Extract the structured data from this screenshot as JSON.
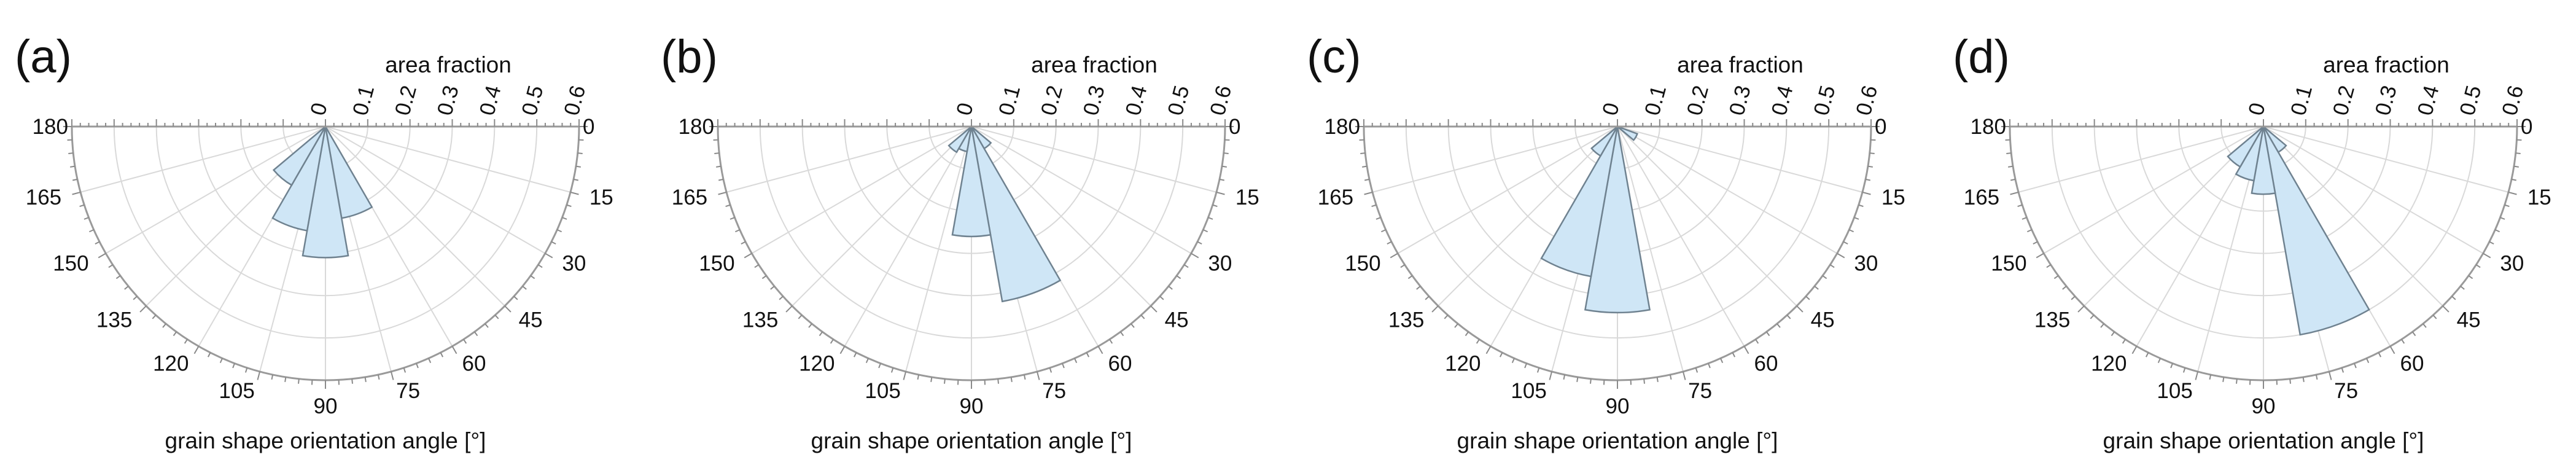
{
  "style": {
    "bar_fill": "#cfe6f6",
    "bar_edge": "#6f8290",
    "grid": "#d9d9d9",
    "frame": "#9a9a9a"
  },
  "chart_data": [
    {
      "type": "polar-histogram",
      "panel_label": "(a)",
      "radial_label": "area fraction",
      "angular_label": "grain shape orientation angle [°]",
      "radial_ticks": [
        "0",
        "0.1",
        "0.2",
        "0.3",
        "0.4",
        "0.5",
        "0.6"
      ],
      "angle_ticks": [
        "0",
        "15",
        "30",
        "45",
        "60",
        "75",
        "90",
        "105",
        "120",
        "135",
        "150",
        "165",
        "180"
      ],
      "rlim": [
        0,
        0.6
      ],
      "theta_range": [
        0,
        180
      ],
      "bins": [
        {
          "from": 60,
          "to": 80,
          "value": 0.22
        },
        {
          "from": 80,
          "to": 100,
          "value": 0.31
        },
        {
          "from": 100,
          "to": 120,
          "value": 0.25
        },
        {
          "from": 120,
          "to": 140,
          "value": 0.16
        }
      ]
    },
    {
      "type": "polar-histogram",
      "panel_label": "(b)",
      "radial_label": "area fraction",
      "angular_label": "grain shape orientation angle [°]",
      "radial_ticks": [
        "0",
        "0.1",
        "0.2",
        "0.3",
        "0.4",
        "0.5",
        "0.6"
      ],
      "angle_ticks": [
        "0",
        "15",
        "30",
        "45",
        "60",
        "75",
        "90",
        "105",
        "120",
        "135",
        "150",
        "165",
        "180"
      ],
      "rlim": [
        0,
        0.6
      ],
      "theta_range": [
        0,
        180
      ],
      "bins": [
        {
          "from": 40,
          "to": 60,
          "value": 0.06
        },
        {
          "from": 60,
          "to": 80,
          "value": 0.42
        },
        {
          "from": 80,
          "to": 100,
          "value": 0.26
        },
        {
          "from": 100,
          "to": 120,
          "value": 0.06
        },
        {
          "from": 120,
          "to": 140,
          "value": 0.07
        }
      ]
    },
    {
      "type": "polar-histogram",
      "panel_label": "(c)",
      "radial_label": "area fraction",
      "angular_label": "grain shape orientation angle [°]",
      "radial_ticks": [
        "0",
        "0.1",
        "0.2",
        "0.3",
        "0.4",
        "0.5",
        "0.6"
      ],
      "angle_ticks": [
        "0",
        "15",
        "30",
        "45",
        "60",
        "75",
        "90",
        "105",
        "120",
        "135",
        "150",
        "165",
        "180"
      ],
      "rlim": [
        0,
        0.6
      ],
      "theta_range": [
        0,
        180
      ],
      "bins": [
        {
          "from": 20,
          "to": 40,
          "value": 0.05
        },
        {
          "from": 80,
          "to": 100,
          "value": 0.44
        },
        {
          "from": 100,
          "to": 120,
          "value": 0.36
        },
        {
          "from": 120,
          "to": 140,
          "value": 0.08
        }
      ]
    },
    {
      "type": "polar-histogram",
      "panel_label": "(d)",
      "radial_label": "area fraction",
      "angular_label": "grain shape orientation angle [°]",
      "radial_ticks": [
        "0",
        "0.1",
        "0.2",
        "0.3",
        "0.4",
        "0.5",
        "0.6"
      ],
      "angle_ticks": [
        "0",
        "15",
        "30",
        "45",
        "60",
        "75",
        "90",
        "105",
        "120",
        "135",
        "150",
        "165",
        "180"
      ],
      "rlim": [
        0,
        0.6
      ],
      "theta_range": [
        0,
        180
      ],
      "bins": [
        {
          "from": 40,
          "to": 60,
          "value": 0.07
        },
        {
          "from": 60,
          "to": 80,
          "value": 0.5
        },
        {
          "from": 80,
          "to": 100,
          "value": 0.16
        },
        {
          "from": 100,
          "to": 120,
          "value": 0.13
        },
        {
          "from": 120,
          "to": 140,
          "value": 0.11
        }
      ]
    }
  ]
}
